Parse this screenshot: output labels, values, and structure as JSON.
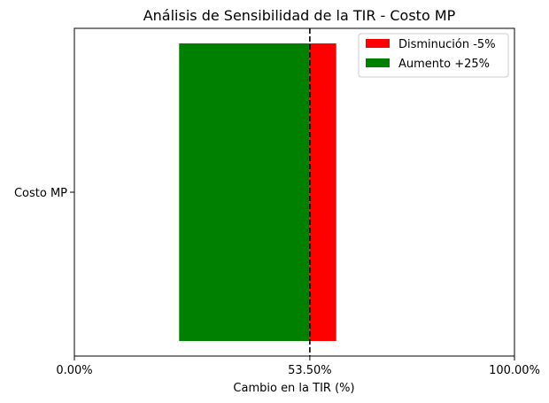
{
  "chart_data": {
    "type": "bar",
    "orientation": "horizontal",
    "title": "Análisis de Sensibilidad de la TIR - Costo MP",
    "xlabel": "Cambio en la TIR (%)",
    "ylabel": "",
    "categories": [
      "Costo MP"
    ],
    "xlim": [
      0,
      100
    ],
    "xticks": [
      {
        "value": 0,
        "label": "0.00%"
      },
      {
        "value": 53.5,
        "label": "53.50%"
      },
      {
        "value": 100,
        "label": "100.00%"
      }
    ],
    "baseline": 53.5,
    "baseline_style": "dashed",
    "series": [
      {
        "name": "Disminución -5%",
        "color": "#ff0000",
        "start": 53.5,
        "end": 59.5
      },
      {
        "name": "Aumento +25%",
        "color": "#008000",
        "start": 23.8,
        "end": 53.5
      }
    ],
    "grid": false,
    "legend": "top-right"
  }
}
